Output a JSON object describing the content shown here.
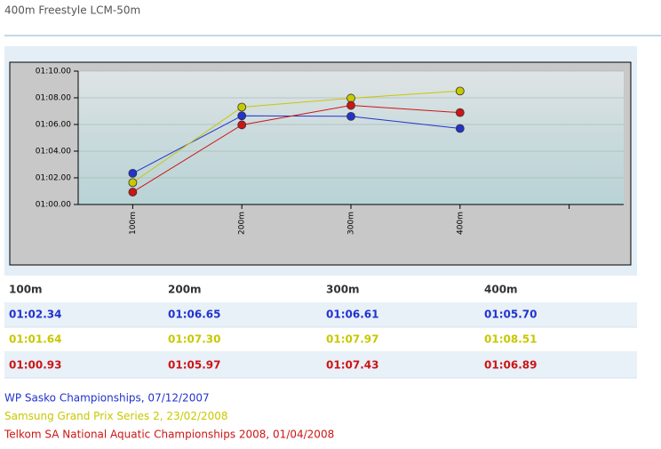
{
  "chart_data": {
    "type": "line",
    "title": "400m Freestyle LCM-50m",
    "categories": [
      "100m",
      "200m",
      "300m",
      "400m"
    ],
    "ylim": [
      60,
      70
    ],
    "yticks": [
      {
        "value": 60,
        "label": "01:00.00"
      },
      {
        "value": 62,
        "label": "01:02.00"
      },
      {
        "value": 64,
        "label": "01:04.00"
      },
      {
        "value": 66,
        "label": "01:06.00"
      },
      {
        "value": 68,
        "label": "01:08.00"
      },
      {
        "value": 70,
        "label": "01:10.00"
      }
    ],
    "grid": true,
    "series": [
      {
        "name": "WP Sasko Championships, 07/12/2007",
        "color": "#2233cc",
        "values": [
          62.34,
          66.65,
          66.61,
          65.7
        ],
        "value_labels": [
          "01:02.34",
          "01:06.65",
          "01:06.61",
          "01:05.70"
        ]
      },
      {
        "name": "Samsung Grand Prix Series 2, 23/02/2008",
        "color": "#c8c800",
        "values": [
          61.64,
          67.3,
          67.97,
          68.51
        ],
        "value_labels": [
          "01:01.64",
          "01:07.30",
          "01:07.97",
          "01:08.51"
        ]
      },
      {
        "name": "Telkom SA National Aquatic Championships 2008, 01/04/2008",
        "color": "#cc1515",
        "values": [
          60.93,
          65.97,
          67.43,
          66.89
        ],
        "value_labels": [
          "01:00.93",
          "01:05.97",
          "01:07.43",
          "01:06.89"
        ]
      }
    ]
  }
}
